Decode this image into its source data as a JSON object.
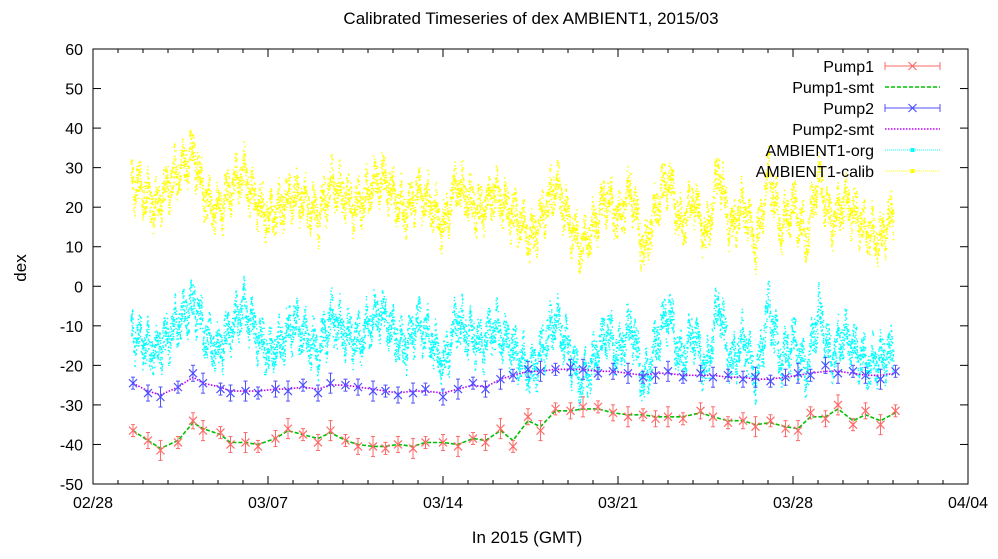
{
  "chart_data": {
    "type": "line",
    "title": "Calibrated Timeseries of dex AMBIENT1, 2015/03",
    "xlabel": "In 2015 (GMT)",
    "ylabel": "dex",
    "ylim": [
      -50,
      60
    ],
    "y_ticks": [
      -50,
      -40,
      -30,
      -20,
      -10,
      0,
      10,
      20,
      30,
      40,
      50,
      60
    ],
    "x_range_days": [
      "02/28",
      "04/04"
    ],
    "x_ticks": [
      {
        "label": "02/28",
        "day": 0
      },
      {
        "label": "03/07",
        "day": 7
      },
      {
        "label": "03/14",
        "day": 14
      },
      {
        "label": "03/21",
        "day": 21
      },
      {
        "label": "03/28",
        "day": 28
      },
      {
        "label": "04/04",
        "day": 35
      }
    ],
    "legend_position": "top-right",
    "grid": false,
    "series": [
      {
        "name": "Pump1",
        "color": "#ff6a6a",
        "style": "points-errorbars",
        "marker": "x",
        "x": [
          1.6,
          2.2,
          2.7,
          3.4,
          4.0,
          4.4,
          5.1,
          5.5,
          6.1,
          6.6,
          7.3,
          7.8,
          8.4,
          9.0,
          9.5,
          10.1,
          10.6,
          11.2,
          11.7,
          12.2,
          12.8,
          13.3,
          14.0,
          14.6,
          15.2,
          15.7,
          16.3,
          16.8,
          17.4,
          17.9,
          18.5,
          19.1,
          19.6,
          20.2,
          20.8,
          21.4,
          22.0,
          22.5,
          23.0,
          23.6,
          24.3,
          24.8,
          25.4,
          26.0,
          26.5,
          27.1,
          27.7,
          28.2,
          28.7,
          29.3,
          29.8,
          30.4,
          30.9,
          31.5,
          32.1
        ],
        "y": [
          -36.5,
          -39.0,
          -41.5,
          -39.5,
          -34.0,
          -36.5,
          -37.0,
          -40.0,
          -39.5,
          -40.5,
          -38.5,
          -36.0,
          -37.5,
          -39.5,
          -36.5,
          -39.0,
          -40.5,
          -40.5,
          -41.0,
          -40.0,
          -41.0,
          -39.5,
          -39.5,
          -40.5,
          -38.5,
          -39.5,
          -36.0,
          -40.5,
          -33.0,
          -36.5,
          -31.0,
          -31.5,
          -30.5,
          -30.5,
          -32.0,
          -33.0,
          -32.5,
          -33.5,
          -33.0,
          -33.5,
          -31.5,
          -33.0,
          -34.5,
          -34.0,
          -35.5,
          -34.0,
          -36.0,
          -36.5,
          -32.0,
          -33.5,
          -30.0,
          -35.0,
          -31.5,
          -35.0,
          -31.5
        ]
      },
      {
        "name": "Pump1-smt",
        "color": "#00c000",
        "style": "dashed-line",
        "x": [
          1.6,
          2.2,
          2.7,
          3.4,
          4.0,
          4.4,
          5.1,
          5.5,
          6.1,
          6.6,
          7.3,
          7.8,
          8.4,
          9.0,
          9.5,
          10.1,
          10.6,
          11.2,
          11.7,
          12.2,
          12.8,
          13.3,
          14.0,
          14.6,
          15.2,
          15.7,
          16.3,
          16.8,
          17.4,
          17.9,
          18.5,
          19.1,
          19.6,
          20.2,
          20.8,
          21.4,
          22.0,
          22.5,
          23.0,
          23.6,
          24.3,
          24.8,
          25.4,
          26.0,
          26.5,
          27.1,
          27.7,
          28.2,
          28.7,
          29.3,
          29.8,
          30.4,
          30.9,
          31.5,
          32.1
        ],
        "y": [
          -36.5,
          -39.0,
          -41.0,
          -39.0,
          -34.5,
          -36.0,
          -37.5,
          -39.5,
          -39.5,
          -40.0,
          -38.5,
          -36.5,
          -37.5,
          -38.5,
          -37.0,
          -39.0,
          -40.0,
          -40.5,
          -40.5,
          -40.0,
          -40.5,
          -39.5,
          -39.5,
          -40.0,
          -38.5,
          -39.0,
          -36.5,
          -39.0,
          -34.0,
          -35.5,
          -31.5,
          -31.5,
          -31.0,
          -31.0,
          -32.0,
          -32.5,
          -32.5,
          -33.0,
          -33.0,
          -33.0,
          -32.0,
          -33.0,
          -34.0,
          -34.0,
          -35.0,
          -34.5,
          -35.5,
          -36.0,
          -33.0,
          -33.0,
          -31.0,
          -34.0,
          -32.5,
          -34.0,
          -32.0
        ]
      },
      {
        "name": "Pump2",
        "color": "#5050ff",
        "style": "points-errorbars",
        "marker": "x",
        "x": [
          1.6,
          2.2,
          2.7,
          3.4,
          4.0,
          4.4,
          5.1,
          5.5,
          6.1,
          6.6,
          7.3,
          7.8,
          8.4,
          9.0,
          9.5,
          10.1,
          10.6,
          11.2,
          11.7,
          12.2,
          12.8,
          13.3,
          14.0,
          14.6,
          15.2,
          15.7,
          16.3,
          16.8,
          17.4,
          17.9,
          18.5,
          19.1,
          19.6,
          20.2,
          20.8,
          21.4,
          22.0,
          22.5,
          23.0,
          23.6,
          24.3,
          24.8,
          25.4,
          26.0,
          26.5,
          27.1,
          27.7,
          28.2,
          28.7,
          29.3,
          29.8,
          30.4,
          30.9,
          31.5,
          32.1
        ],
        "y": [
          -24.5,
          -27.0,
          -28.0,
          -25.5,
          -22.0,
          -24.5,
          -26.0,
          -27.0,
          -26.5,
          -27.0,
          -26.0,
          -26.5,
          -25.0,
          -27.0,
          -24.5,
          -25.0,
          -25.5,
          -26.5,
          -26.5,
          -27.5,
          -27.0,
          -26.0,
          -28.0,
          -26.0,
          -24.5,
          -26.0,
          -23.5,
          -22.5,
          -21.0,
          -21.5,
          -21.0,
          -20.5,
          -21.0,
          -22.0,
          -21.5,
          -22.0,
          -23.0,
          -22.5,
          -21.5,
          -23.0,
          -22.0,
          -23.0,
          -22.5,
          -23.5,
          -23.0,
          -24.0,
          -23.0,
          -22.0,
          -22.5,
          -20.0,
          -22.0,
          -21.5,
          -22.5,
          -23.5,
          -21.5
        ]
      },
      {
        "name": "Pump2-smt",
        "color": "#c000ff",
        "style": "dotted-line",
        "x": [
          1.6,
          2.2,
          2.7,
          3.4,
          4.0,
          4.4,
          5.1,
          5.5,
          6.1,
          6.6,
          7.3,
          7.8,
          8.4,
          9.0,
          9.5,
          10.1,
          10.6,
          11.2,
          11.7,
          12.2,
          12.8,
          13.3,
          14.0,
          14.6,
          15.2,
          15.7,
          16.3,
          16.8,
          17.4,
          17.9,
          18.5,
          19.1,
          19.6,
          20.2,
          20.8,
          21.4,
          22.0,
          22.5,
          23.0,
          23.6,
          24.3,
          24.8,
          25.4,
          26.0,
          26.5,
          27.1,
          27.7,
          28.2,
          28.7,
          29.3,
          29.8,
          30.4,
          30.9,
          31.5,
          32.1
        ],
        "y": [
          -24.5,
          -26.5,
          -27.5,
          -25.5,
          -23.0,
          -24.5,
          -25.5,
          -26.5,
          -26.5,
          -26.5,
          -26.0,
          -26.0,
          -25.5,
          -26.0,
          -25.0,
          -25.0,
          -25.5,
          -26.0,
          -26.5,
          -27.0,
          -26.5,
          -26.5,
          -27.0,
          -26.0,
          -25.0,
          -25.5,
          -23.5,
          -22.5,
          -21.5,
          -21.5,
          -21.0,
          -21.0,
          -21.0,
          -21.5,
          -21.5,
          -22.0,
          -22.5,
          -22.0,
          -22.0,
          -22.5,
          -22.5,
          -22.5,
          -23.0,
          -23.0,
          -23.5,
          -23.5,
          -23.0,
          -22.5,
          -22.0,
          -21.5,
          -21.5,
          -22.0,
          -22.5,
          -22.5,
          -22.0
        ]
      },
      {
        "name": "AMBIENT1-org",
        "color": "#00ffff",
        "style": "dense-points",
        "x": [
          1.5,
          2.0,
          2.5,
          3.0,
          3.5,
          4.0,
          4.5,
          5.0,
          5.5,
          6.0,
          6.5,
          7.0,
          7.5,
          8.0,
          8.5,
          9.0,
          9.5,
          10.0,
          10.5,
          11.0,
          11.5,
          12.0,
          12.5,
          13.0,
          13.5,
          14.0,
          14.5,
          15.0,
          15.5,
          16.0,
          16.5,
          17.0,
          17.5,
          18.0,
          18.5,
          19.0,
          19.5,
          20.0,
          20.5,
          21.0,
          21.5,
          22.0,
          22.5,
          23.0,
          23.5,
          24.0,
          24.5,
          25.0,
          25.5,
          26.0,
          26.5,
          27.0,
          27.5,
          28.0,
          28.5,
          29.0,
          29.5,
          30.0,
          30.5,
          31.0,
          31.5,
          32.0
        ],
        "y": [
          -11,
          -14,
          -17,
          -12,
          -8,
          -4,
          -13,
          -16,
          -10,
          -5,
          -12,
          -17,
          -14,
          -9,
          -13,
          -16,
          -8,
          -11,
          -14,
          -10,
          -6,
          -12,
          -15,
          -9,
          -13,
          -20,
          -8,
          -12,
          -15,
          -10,
          -14,
          -17,
          -22,
          -15,
          -8,
          -16,
          -24,
          -19,
          -11,
          -17,
          -9,
          -25,
          -14,
          -6,
          -19,
          -11,
          -22,
          -4,
          -20,
          -13,
          -24,
          -5,
          -19,
          -13,
          -22,
          -6,
          -18,
          -12,
          -16,
          -20,
          -18,
          -16
        ],
        "band": 4
      },
      {
        "name": "AMBIENT1-calib",
        "color": "#ffff00",
        "style": "dense-points",
        "x": [
          1.5,
          2.0,
          2.5,
          3.0,
          3.5,
          4.0,
          4.5,
          5.0,
          5.5,
          6.0,
          6.5,
          7.0,
          7.5,
          8.0,
          8.5,
          9.0,
          9.5,
          10.0,
          10.5,
          11.0,
          11.5,
          12.0,
          12.5,
          13.0,
          13.5,
          14.0,
          14.5,
          15.0,
          15.5,
          16.0,
          16.5,
          17.0,
          17.5,
          18.0,
          18.5,
          19.0,
          19.5,
          20.0,
          20.5,
          21.0,
          21.5,
          22.0,
          22.5,
          23.0,
          23.5,
          24.0,
          24.5,
          25.0,
          25.5,
          26.0,
          26.5,
          27.0,
          27.5,
          28.0,
          28.5,
          29.0,
          29.5,
          30.0,
          30.5,
          31.0,
          31.5,
          32.0
        ],
        "y": [
          27,
          24,
          20,
          26,
          30,
          34,
          22,
          19,
          25,
          29,
          21,
          18,
          20,
          24,
          21,
          18,
          26,
          23,
          20,
          24,
          28,
          23,
          19,
          24,
          21,
          15,
          26,
          22,
          19,
          24,
          20,
          17,
          12,
          19,
          26,
          17,
          10,
          15,
          23,
          17,
          25,
          8,
          20,
          28,
          15,
          23,
          12,
          30,
          14,
          21,
          10,
          29,
          15,
          21,
          12,
          28,
          16,
          22,
          18,
          14,
          12,
          20
        ],
        "band": 4
      }
    ]
  }
}
